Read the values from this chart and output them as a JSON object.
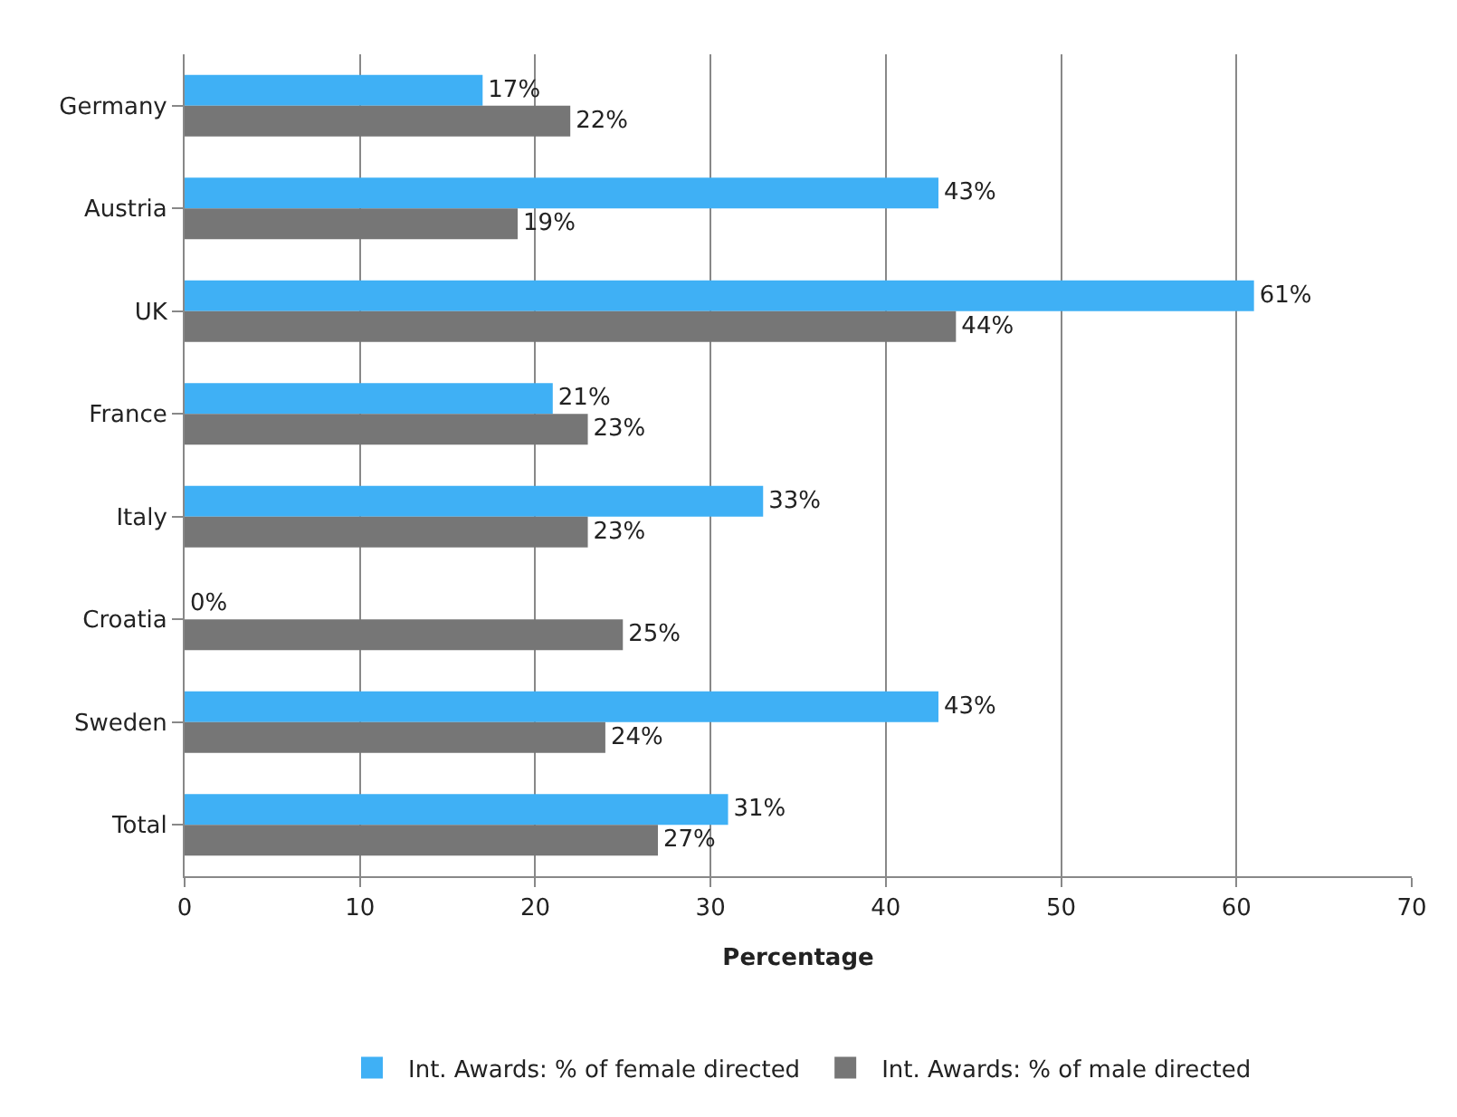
{
  "chart_data": {
    "type": "bar",
    "orientation": "horizontal",
    "xlabel": "Percentage",
    "categories": [
      "Germany",
      "Austria",
      "UK",
      "France",
      "Italy",
      "Croatia",
      "Sweden",
      "Total"
    ],
    "series": [
      {
        "name": "Int. Awards: % of female directed",
        "color": "#3fb0f5",
        "values": [
          17,
          43,
          61,
          21,
          33,
          0,
          43,
          31
        ],
        "value_labels": [
          "17%",
          "43%",
          "61%",
          "21%",
          "33%",
          "0%",
          "43%",
          "31%"
        ]
      },
      {
        "name": "Int. Awards: % of male directed",
        "color": "#767676",
        "values": [
          22,
          19,
          44,
          23,
          23,
          25,
          24,
          27
        ],
        "value_labels": [
          "22%",
          "19%",
          "44%",
          "23%",
          "23%",
          "25%",
          "24%",
          "27%"
        ]
      }
    ],
    "xlim": [
      0,
      70
    ],
    "xticks": [
      0,
      10,
      20,
      30,
      40,
      50,
      60,
      70
    ],
    "grid": "x",
    "legend": "bottom"
  }
}
